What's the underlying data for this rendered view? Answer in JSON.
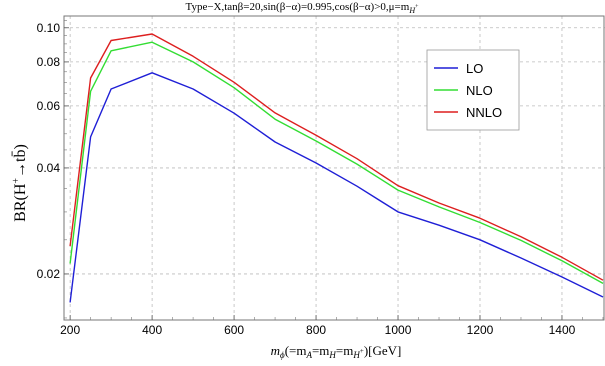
{
  "chart_data": {
    "type": "line",
    "title": "Type−X,tanβ=20,sin(β−α)=0.995,cos(β−α)>0,μ=m",
    "title_subscript": "H",
    "title_sub_superscript": "+",
    "ylabel": "BR(H",
    "ylabel_superscript": "+",
    "ylabel_tail": "→tb̄)",
    "xlabel": "m",
    "xlabel_subscript": "ϕ",
    "xlabel_tail": "(=m",
    "xlabel_A": "A",
    "xlabel_eq1": "=m",
    "xlabel_H": "H",
    "xlabel_eq2": "=m",
    "xlabel_Hp": "H",
    "xlabel_Hp_sup": "+",
    "xlabel_unit": ")[GeV]",
    "y_scale": "log",
    "xlim": [
      185,
      1505
    ],
    "ylim": [
      0.0148,
      0.108
    ],
    "x_ticks": [
      200,
      400,
      600,
      800,
      1000,
      1200,
      1400
    ],
    "x_tick_labels": [
      "200",
      "400",
      "600",
      "800",
      "1000",
      "1200",
      "1400"
    ],
    "y_ticks": [
      0.02,
      0.04,
      0.06,
      0.08,
      0.1
    ],
    "y_tick_labels": [
      "0.02",
      "0.04",
      "0.06",
      "0.08",
      "0.10"
    ],
    "grid": true,
    "legend_position": "top-right",
    "x": [
      200,
      250,
      300,
      400,
      500,
      600,
      700,
      800,
      900,
      1000,
      1100,
      1200,
      1300,
      1400,
      1500
    ],
    "series": [
      {
        "name": "LO",
        "color": "#1f1fd6",
        "values": [
          0.0166,
          0.049,
          0.067,
          0.0745,
          0.067,
          0.0572,
          0.0474,
          0.0413,
          0.0355,
          0.03,
          0.0275,
          0.025,
          0.0222,
          0.0196,
          0.0172
        ]
      },
      {
        "name": "NLO",
        "color": "#33dd33",
        "values": [
          0.0214,
          0.066,
          0.086,
          0.091,
          0.08,
          0.0676,
          0.055,
          0.0477,
          0.041,
          0.0346,
          0.031,
          0.028,
          0.0249,
          0.0218,
          0.0188
        ]
      },
      {
        "name": "NNLO",
        "color": "#dd1f1f",
        "values": [
          0.024,
          0.072,
          0.092,
          0.096,
          0.083,
          0.07,
          0.0573,
          0.0495,
          0.0425,
          0.0356,
          0.0318,
          0.0288,
          0.0255,
          0.0223,
          0.0192
        ]
      }
    ]
  }
}
